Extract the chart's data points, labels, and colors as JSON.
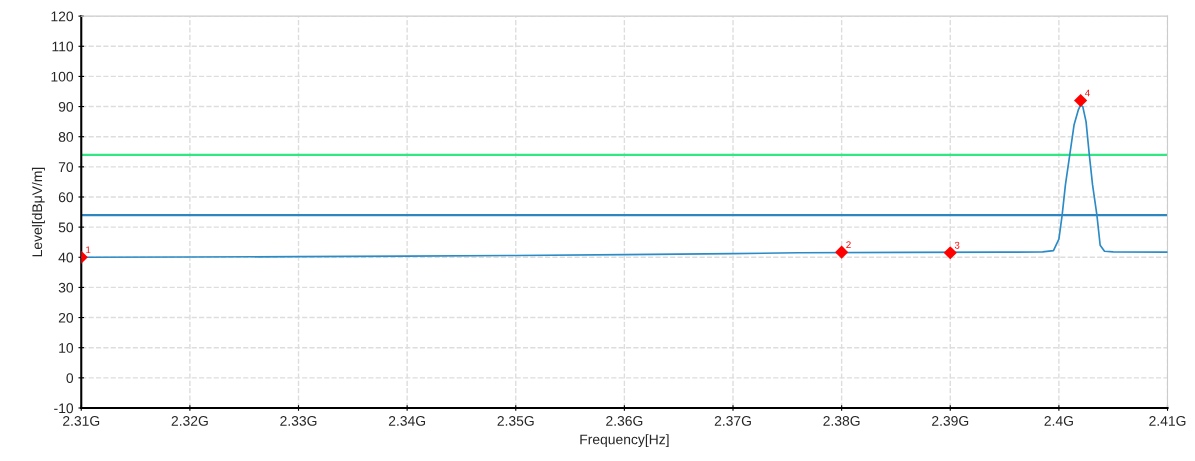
{
  "chart_data": {
    "type": "line",
    "xlabel": "Frequency[Hz]",
    "ylabel": "Level[dBμV/m]",
    "xlim": [
      2.31,
      2.41
    ],
    "ylim": [
      -10,
      120
    ],
    "xticks": [
      {
        "value": 2.31,
        "label": "2.31G"
      },
      {
        "value": 2.32,
        "label": "2.32G"
      },
      {
        "value": 2.33,
        "label": "2.33G"
      },
      {
        "value": 2.34,
        "label": "2.34G"
      },
      {
        "value": 2.35,
        "label": "2.35G"
      },
      {
        "value": 2.36,
        "label": "2.36G"
      },
      {
        "value": 2.37,
        "label": "2.37G"
      },
      {
        "value": 2.38,
        "label": "2.38G"
      },
      {
        "value": 2.39,
        "label": "2.39G"
      },
      {
        "value": 2.4,
        "label": "2.4G"
      },
      {
        "value": 2.41,
        "label": "2.41G"
      }
    ],
    "yticks": [
      -10,
      0,
      10,
      20,
      30,
      40,
      50,
      60,
      70,
      80,
      90,
      100,
      110,
      120
    ],
    "grid": true,
    "series": [
      {
        "color": "#2b8bc6",
        "x": [
          2.31,
          2.32,
          2.33,
          2.34,
          2.35,
          2.36,
          2.37,
          2.376,
          2.386,
          2.395,
          2.3985,
          2.3995,
          2.4,
          2.4003,
          2.4006,
          2.401,
          2.4014,
          2.4018,
          2.402,
          2.4022,
          2.4025,
          2.4028,
          2.4031,
          2.4035,
          2.4038,
          2.4042,
          2.405,
          2.41
        ],
        "values": [
          40,
          40.1,
          40.2,
          40.4,
          40.6,
          40.9,
          41.2,
          41.5,
          41.6,
          41.7,
          41.8,
          42.2,
          46,
          54,
          64,
          74,
          84,
          89,
          90.5,
          90,
          85,
          74,
          64,
          54,
          44,
          42,
          41.8,
          41.7
        ]
      },
      {
        "type": "scatter",
        "color": "#ff0000",
        "marker": "diamond",
        "x": [
          2.31,
          2.38,
          2.39,
          2.402
        ],
        "values": [
          40,
          41.7,
          41.5,
          92
        ]
      }
    ],
    "ref_lines": [
      {
        "axis": "y",
        "value": 74,
        "color": "#33e684"
      },
      {
        "axis": "y",
        "value": 54,
        "color": "#2e86c1"
      }
    ],
    "annotations": [
      {
        "text": "1",
        "x": 2.31,
        "y": 40
      },
      {
        "text": "2",
        "x": 2.38,
        "y": 41.7
      },
      {
        "text": "3",
        "x": 2.39,
        "y": 41.5
      },
      {
        "text": "4",
        "x": 2.402,
        "y": 92
      }
    ]
  }
}
